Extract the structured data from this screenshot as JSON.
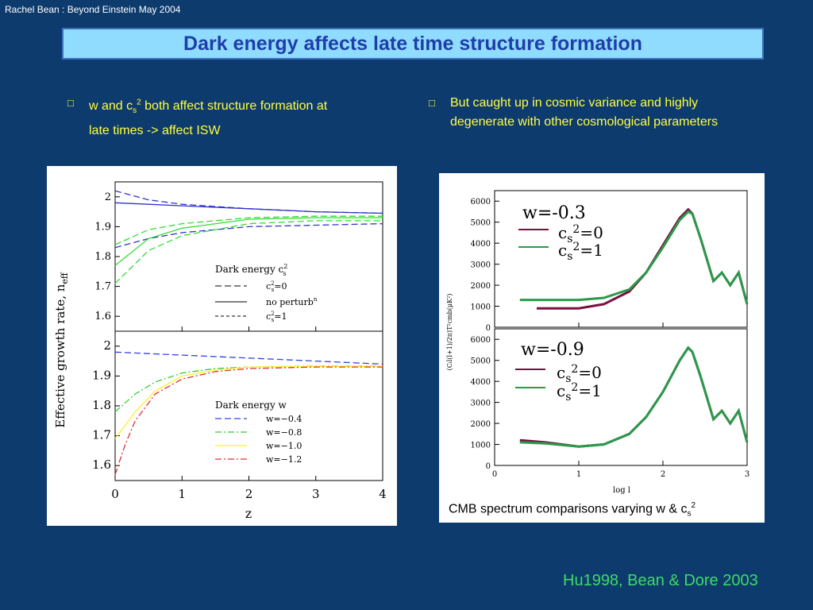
{
  "header": {
    "note": "Rachel Bean : Beyond Einstein May 2004"
  },
  "title": "Dark energy affects late time structure formation",
  "bullets": {
    "left": {
      "line1_a": "w and c",
      "line1_sub": "s",
      "line1_sup": "2",
      "line1_b": " both affect structure formation at",
      "line2": "late times -> affect ISW"
    },
    "right": {
      "line1": "But caught up in cosmic variance and highly",
      "line2": "degenerate with other cosmological parameters"
    }
  },
  "caption": {
    "text": "CMB spectrum comparisons varying w & c",
    "sub": "s",
    "sup": "2"
  },
  "credit": "Hu1998, Bean & Dore 2003",
  "colors": {
    "background": "#0e3b6e",
    "title_box": "#8fdcff",
    "title_text": "#1f3ea8",
    "bullet_text": "#ffff3c",
    "credit_text": "#3cdc64",
    "maroon": "#7a1040",
    "green": "#2a9a4a"
  },
  "chart_data": [
    {
      "type": "line",
      "panel": "top-left",
      "ylabel": "Effective  growth  rate,  n",
      "ylabel_sub": "eff",
      "ylim": [
        1.55,
        2.05
      ],
      "yticks": [
        "2",
        "1.9",
        "1.8",
        "1.7",
        "1.6"
      ],
      "legend_title": "Dark energy  c",
      "legend_title_sup": "2",
      "legend_title_sub": "s",
      "legend": [
        "c²s=0",
        "no perturbⁿ",
        "c²s=1"
      ],
      "legend_labels": {
        "c0_a": "c",
        "c0_b": "=0",
        "np": "no perturb",
        "np_sup": "n",
        "c1_b": "=1",
        "sup": "2",
        "sub": "s"
      },
      "series": [
        {
          "name": "c²s=0 (w=-0.8)",
          "style": "dashed",
          "color": "#3333cc",
          "x": [
            0,
            0.5,
            1,
            2,
            3,
            4
          ],
          "values": [
            2.02,
            1.99,
            1.975,
            1.96,
            1.95,
            1.945
          ]
        },
        {
          "name": "no perturb (w=-0.8)",
          "style": "solid",
          "color": "#3333cc",
          "x": [
            0,
            0.5,
            1,
            2,
            3,
            4
          ],
          "values": [
            1.98,
            1.975,
            1.97,
            1.96,
            1.95,
            1.945
          ]
        },
        {
          "name": "c²s=1 (w=-0.8)",
          "style": "dashed",
          "color": "#3333cc",
          "x": [
            0,
            0.5,
            1,
            2,
            3,
            4
          ],
          "values": [
            1.83,
            1.86,
            1.88,
            1.9,
            1.905,
            1.91
          ]
        },
        {
          "name": "c²s=0 (w=-1.2)",
          "style": "dashed",
          "color": "#33dd33",
          "x": [
            0,
            0.5,
            1,
            2,
            3,
            4
          ],
          "values": [
            1.84,
            1.89,
            1.91,
            1.93,
            1.935,
            1.935
          ]
        },
        {
          "name": "no perturb (w=-1.2)",
          "style": "solid",
          "color": "#33dd33",
          "x": [
            0,
            0.5,
            1,
            2,
            3,
            4
          ],
          "values": [
            1.77,
            1.86,
            1.895,
            1.925,
            1.93,
            1.93
          ]
        },
        {
          "name": "c²s=1 (w=-1.2)",
          "style": "dashed",
          "color": "#33dd33",
          "x": [
            0,
            0.5,
            1,
            2,
            3,
            4
          ],
          "values": [
            1.71,
            1.82,
            1.87,
            1.91,
            1.92,
            1.92
          ]
        }
      ]
    },
    {
      "type": "line",
      "panel": "bottom-left",
      "xlabel": "z",
      "xlim": [
        0,
        4
      ],
      "xticks": [
        "0",
        "1",
        "2",
        "3",
        "4"
      ],
      "ylim": [
        1.55,
        2.05
      ],
      "yticks": [
        "2",
        "1.9",
        "1.8",
        "1.7",
        "1.6"
      ],
      "legend_title": "Dark energy  w",
      "legend": [
        "w=−0.4",
        "w=−0.8",
        "w=−1.0",
        "w=−1.2"
      ],
      "series": [
        {
          "name": "w=−0.4",
          "style": "dashed",
          "color": "#3344dd",
          "x": [
            0,
            0.5,
            1,
            2,
            3,
            4
          ],
          "values": [
            1.98,
            1.975,
            1.97,
            1.96,
            1.95,
            1.94
          ]
        },
        {
          "name": "w=−0.8",
          "style": "dashdot",
          "color": "#33cc33",
          "x": [
            0,
            0.3,
            0.6,
            1,
            1.5,
            2,
            3,
            4
          ],
          "values": [
            1.78,
            1.84,
            1.88,
            1.91,
            1.925,
            1.93,
            1.933,
            1.933
          ]
        },
        {
          "name": "w=−1.0",
          "style": "solid",
          "color": "#ffee33",
          "x": [
            0,
            0.3,
            0.6,
            1,
            1.5,
            2,
            3,
            4
          ],
          "values": [
            1.69,
            1.78,
            1.85,
            1.9,
            1.92,
            1.93,
            1.932,
            1.932
          ]
        },
        {
          "name": "w=−1.2",
          "style": "dashdot",
          "color": "#dd3333",
          "x": [
            0,
            0.15,
            0.3,
            0.6,
            1,
            1.5,
            2,
            3,
            4
          ],
          "values": [
            1.57,
            1.67,
            1.75,
            1.84,
            1.89,
            1.915,
            1.925,
            1.93,
            1.93
          ]
        }
      ]
    },
    {
      "type": "line",
      "panel": "top-right",
      "ylabel": "(Cₗl(l+1)/2π)T²cmb(μK²)",
      "ylim": [
        0,
        6500
      ],
      "yticks": [
        "6000",
        "5000",
        "4000",
        "3000",
        "2000",
        "1000",
        "0"
      ],
      "annotation": "w=-0.3",
      "legend_labels": {
        "c_main": "c",
        "sub": "s",
        "sup": "2",
        "eq0": "=0",
        "eq1": "=1"
      },
      "series": [
        {
          "name": "c_s²=0",
          "color": "#7a1040",
          "x": [
            0.5,
            1,
            1.3,
            1.6,
            1.8,
            2,
            2.2,
            2.3,
            2.35,
            2.45,
            2.6,
            2.7,
            2.8,
            2.9,
            3
          ],
          "values": [
            900,
            900,
            1100,
            1700,
            2600,
            3900,
            5200,
            5600,
            5400,
            4200,
            2200,
            2600,
            2000,
            2600,
            1100
          ]
        },
        {
          "name": "c_s²=1",
          "color": "#2a9a4a",
          "x": [
            0.3,
            1,
            1.3,
            1.6,
            1.8,
            2,
            2.2,
            2.3,
            2.35,
            2.45,
            2.6,
            2.7,
            2.8,
            2.9,
            3
          ],
          "values": [
            1300,
            1300,
            1400,
            1800,
            2600,
            3800,
            5100,
            5500,
            5400,
            4200,
            2200,
            2600,
            2000,
            2600,
            1100
          ]
        }
      ]
    },
    {
      "type": "line",
      "panel": "bottom-right",
      "xlabel": "log l",
      "xlim": [
        0,
        3
      ],
      "xticks": [
        "0",
        "1",
        "2",
        "3"
      ],
      "ylim": [
        0,
        6500
      ],
      "yticks": [
        "6000",
        "5000",
        "4000",
        "3000",
        "2000",
        "1000",
        "0"
      ],
      "annotation": "w=-0.9",
      "legend_labels": {
        "c_main": "c",
        "sub": "s",
        "sup": "2",
        "eq0": "=0",
        "eq1": "=1"
      },
      "series": [
        {
          "name": "c_s²=0",
          "color": "#7a1040",
          "x": [
            0.3,
            0.6,
            1,
            1.3,
            1.6,
            1.8,
            2,
            2.2,
            2.3,
            2.35,
            2.45,
            2.6,
            2.7,
            2.8,
            2.9,
            3
          ],
          "values": [
            1200,
            1100,
            900,
            1000,
            1500,
            2300,
            3500,
            5000,
            5600,
            5400,
            4200,
            2200,
            2600,
            2000,
            2600,
            1100
          ]
        },
        {
          "name": "c_s²=1",
          "color": "#2a9a4a",
          "x": [
            0.3,
            0.6,
            1,
            1.3,
            1.6,
            1.8,
            2,
            2.2,
            2.3,
            2.35,
            2.45,
            2.6,
            2.7,
            2.8,
            2.9,
            3
          ],
          "values": [
            1100,
            1050,
            900,
            1000,
            1500,
            2300,
            3500,
            5000,
            5600,
            5400,
            4200,
            2200,
            2600,
            2000,
            2600,
            1100
          ]
        }
      ]
    }
  ]
}
